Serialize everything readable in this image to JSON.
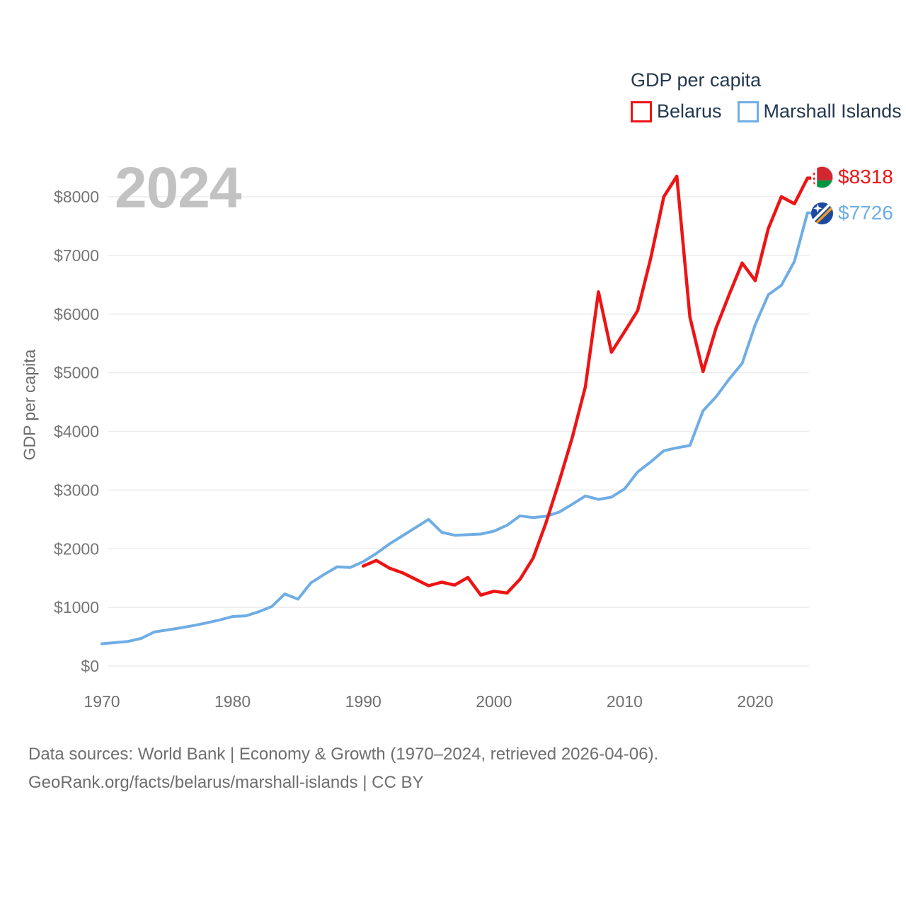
{
  "legend": {
    "title": "GDP per capita",
    "items": [
      {
        "label": "Belarus",
        "color": "#ee1414"
      },
      {
        "label": "Marshall Islands",
        "color": "#6fade4"
      }
    ]
  },
  "watermark": "2024",
  "y_axis_title": "GDP per capita",
  "end_labels": [
    {
      "series": "Belarus",
      "value": "$8318",
      "flag": "belarus-flag"
    },
    {
      "series": "Marshall Islands",
      "value": "$7726",
      "flag": "marshall-islands-flag"
    }
  ],
  "footer": {
    "line1": "Data sources: World Bank | Economy & Growth (1970–2024, retrieved 2026-04-06).",
    "line2": "GeoRank.org/facts/belarus/marshall-islands | CC BY"
  },
  "chart_data": {
    "type": "line",
    "title": "GDP per capita",
    "xlabel": "",
    "ylabel": "GDP per capita",
    "xlim": [
      1970,
      2024
    ],
    "ylim": [
      0,
      8550
    ],
    "grid": "horizontal",
    "legend_position": "top-right",
    "x_ticks": [
      1970,
      1980,
      1990,
      2000,
      2010,
      2020
    ],
    "y_ticks": [
      0,
      1000,
      2000,
      3000,
      4000,
      5000,
      6000,
      7000,
      8000
    ],
    "y_tick_prefix": "$",
    "series": [
      {
        "name": "Marshall Islands",
        "color": "#6fade4",
        "start_year": 1970,
        "end_value_label": "$7726",
        "values": [
          380,
          400,
          420,
          470,
          580,
          615,
          650,
          690,
          735,
          785,
          845,
          855,
          925,
          1015,
          1230,
          1140,
          1420,
          1560,
          1690,
          1680,
          1780,
          1920,
          2080,
          2220,
          2360,
          2500,
          2280,
          2230,
          2240,
          2250,
          2300,
          2400,
          2560,
          2530,
          2555,
          2625,
          2760,
          2900,
          2840,
          2880,
          3020,
          3310,
          3480,
          3670,
          3720,
          3760,
          4350,
          4590,
          4890,
          5160,
          5820,
          6330,
          6490,
          6900,
          7726
        ]
      },
      {
        "name": "Belarus",
        "color": "#ee1414",
        "start_year": 1990,
        "end_value_label": "$8318",
        "values": [
          1705,
          1800,
          1670,
          1590,
          1480,
          1370,
          1430,
          1380,
          1510,
          1210,
          1275,
          1245,
          1480,
          1840,
          2450,
          3150,
          3900,
          4760,
          6380,
          5350,
          5700,
          6060,
          6950,
          8000,
          8350,
          5950,
          5020,
          5760,
          6330,
          6870,
          6570,
          7460,
          8000,
          7880,
          8318
        ]
      }
    ]
  }
}
